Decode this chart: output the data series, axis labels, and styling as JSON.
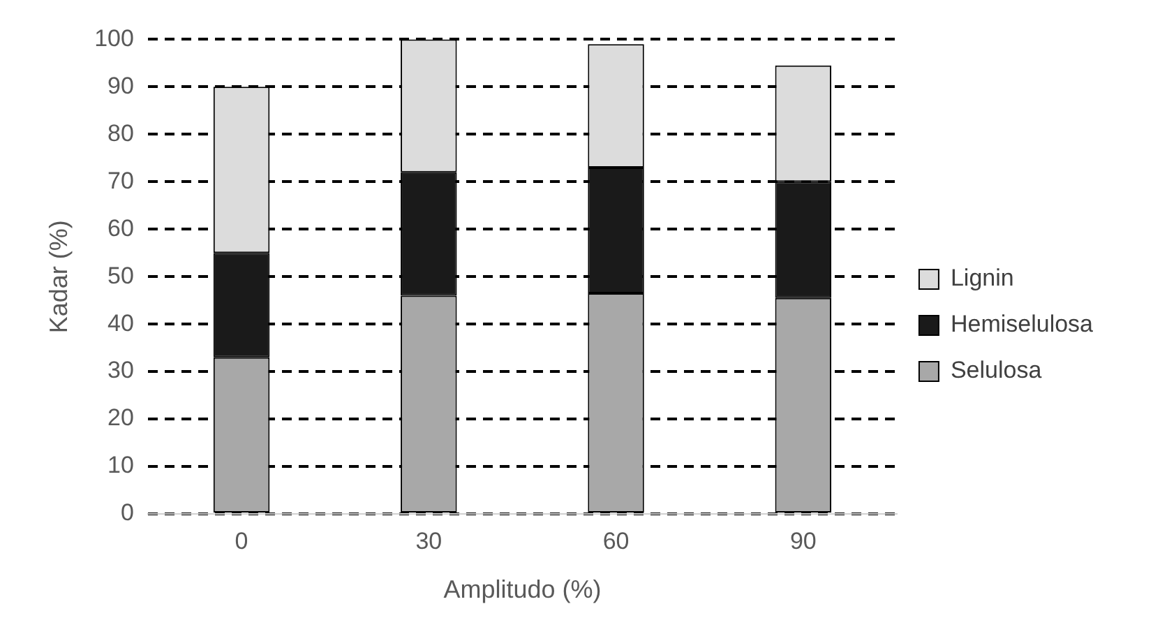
{
  "chart_data": {
    "type": "bar",
    "stacked": true,
    "xlabel": "Amplitudo (%)",
    "ylabel": "Kadar (%)",
    "categories": [
      "0",
      "30",
      "60",
      "90"
    ],
    "series": [
      {
        "name": "Selulosa",
        "color": "#a8a8a8",
        "values": [
          33,
          46,
          46.5,
          45.5
        ]
      },
      {
        "name": "Hemiselulosa",
        "color": "#1a1a1a",
        "values": [
          22,
          26,
          26.5,
          24.5
        ]
      },
      {
        "name": "Lignin",
        "color": "#dcdcdc",
        "values": [
          35,
          28,
          26,
          24.5
        ]
      }
    ],
    "ylim": [
      0,
      100
    ],
    "yticks": [
      0,
      10,
      20,
      30,
      40,
      50,
      60,
      70,
      80,
      90,
      100
    ],
    "grid": "y",
    "line_style": "dashed",
    "legend": "right"
  }
}
